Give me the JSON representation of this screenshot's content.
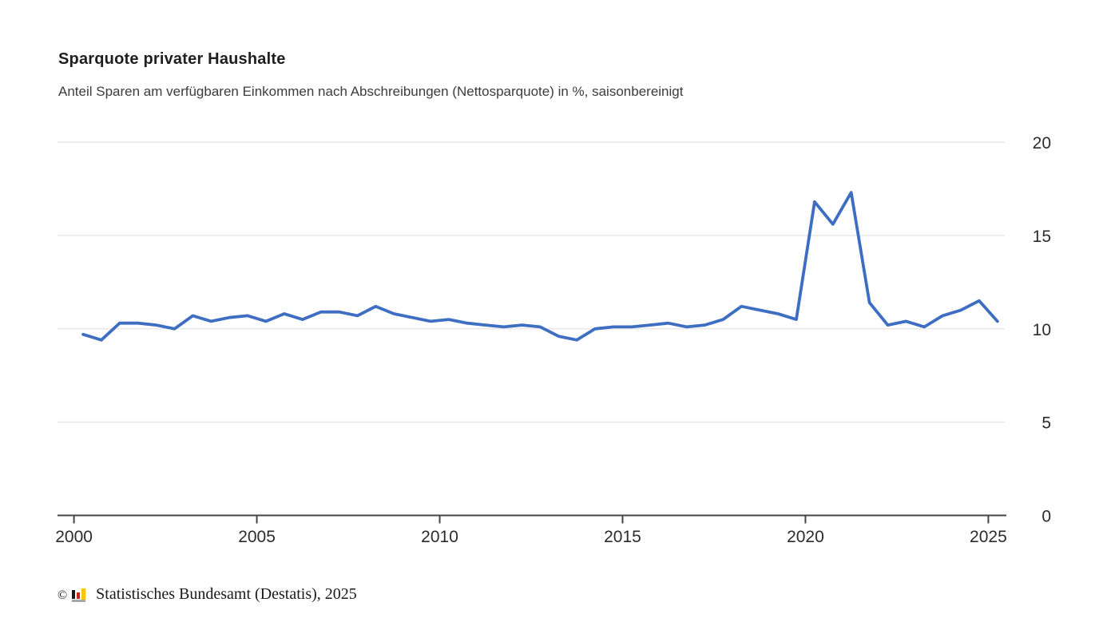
{
  "header": {
    "title": "Sparquote privater Haushalte",
    "subtitle": "Anteil Sparen am verfügbaren Einkommen nach Abschreibungen (Nettosparquote) in %, saisonbereinigt"
  },
  "footer": {
    "copyright_symbol": "©",
    "logo_icon": "destatis-bar-chart-logo",
    "source_text": "Statistisches Bundesamt (Destatis), 2025"
  },
  "colors": {
    "line": "#3d6ec2",
    "gridline": "#e8e8e8",
    "axis": "#454545",
    "axis_text": "#2b2b2b",
    "title_text": "#1f1f1f",
    "subtitle_text": "#3c3c3c",
    "logo_black": "#1a1a1a",
    "logo_red": "#cc2418",
    "logo_gold": "#fdc400",
    "logo_grey": "#a6a6a6"
  },
  "chart_data": {
    "type": "line",
    "title": "Sparquote privater Haushalte",
    "subtitle": "Anteil Sparen am verfügbaren Einkommen nach Abschreibungen (Nettosparquote) in %, saisonbereinigt",
    "xlabel": "",
    "ylabel": "",
    "unit": "%",
    "frequency": "half-yearly",
    "grid": "horizontal",
    "legend": "none",
    "xlim": [
      1999.55,
      2025.45
    ],
    "ylim": [
      0,
      20
    ],
    "x_ticks": [
      2000,
      2005,
      2010,
      2015,
      2020,
      2025
    ],
    "y_ticks": [
      0,
      5,
      10,
      15,
      20
    ],
    "series": [
      {
        "color": "#3d6ec2",
        "x": [
          2000.25,
          2000.75,
          2001.25,
          2001.75,
          2002.25,
          2002.75,
          2003.25,
          2003.75,
          2004.25,
          2004.75,
          2005.25,
          2005.75,
          2006.25,
          2006.75,
          2007.25,
          2007.75,
          2008.25,
          2008.75,
          2009.25,
          2009.75,
          2010.25,
          2010.75,
          2011.25,
          2011.75,
          2012.25,
          2012.75,
          2013.25,
          2013.75,
          2014.25,
          2014.75,
          2015.25,
          2015.75,
          2016.25,
          2016.75,
          2017.25,
          2017.75,
          2018.25,
          2018.75,
          2019.25,
          2019.75,
          2020.25,
          2020.75,
          2021.25,
          2021.75,
          2022.25,
          2022.75,
          2023.25,
          2023.75,
          2024.25,
          2024.75,
          2025.25
        ],
        "values": [
          9.7,
          9.4,
          10.3,
          10.3,
          10.2,
          10.0,
          10.7,
          10.4,
          10.6,
          10.7,
          10.4,
          10.8,
          10.5,
          10.9,
          10.9,
          10.7,
          11.2,
          10.8,
          10.6,
          10.4,
          10.5,
          10.3,
          10.2,
          10.1,
          10.2,
          10.1,
          9.6,
          9.4,
          10.0,
          10.1,
          10.1,
          10.2,
          10.3,
          10.1,
          10.2,
          10.5,
          11.2,
          11.0,
          10.8,
          10.5,
          16.8,
          15.6,
          17.3,
          11.4,
          10.2,
          10.4,
          10.1,
          10.7,
          11.0,
          11.5,
          10.4
        ]
      }
    ]
  }
}
